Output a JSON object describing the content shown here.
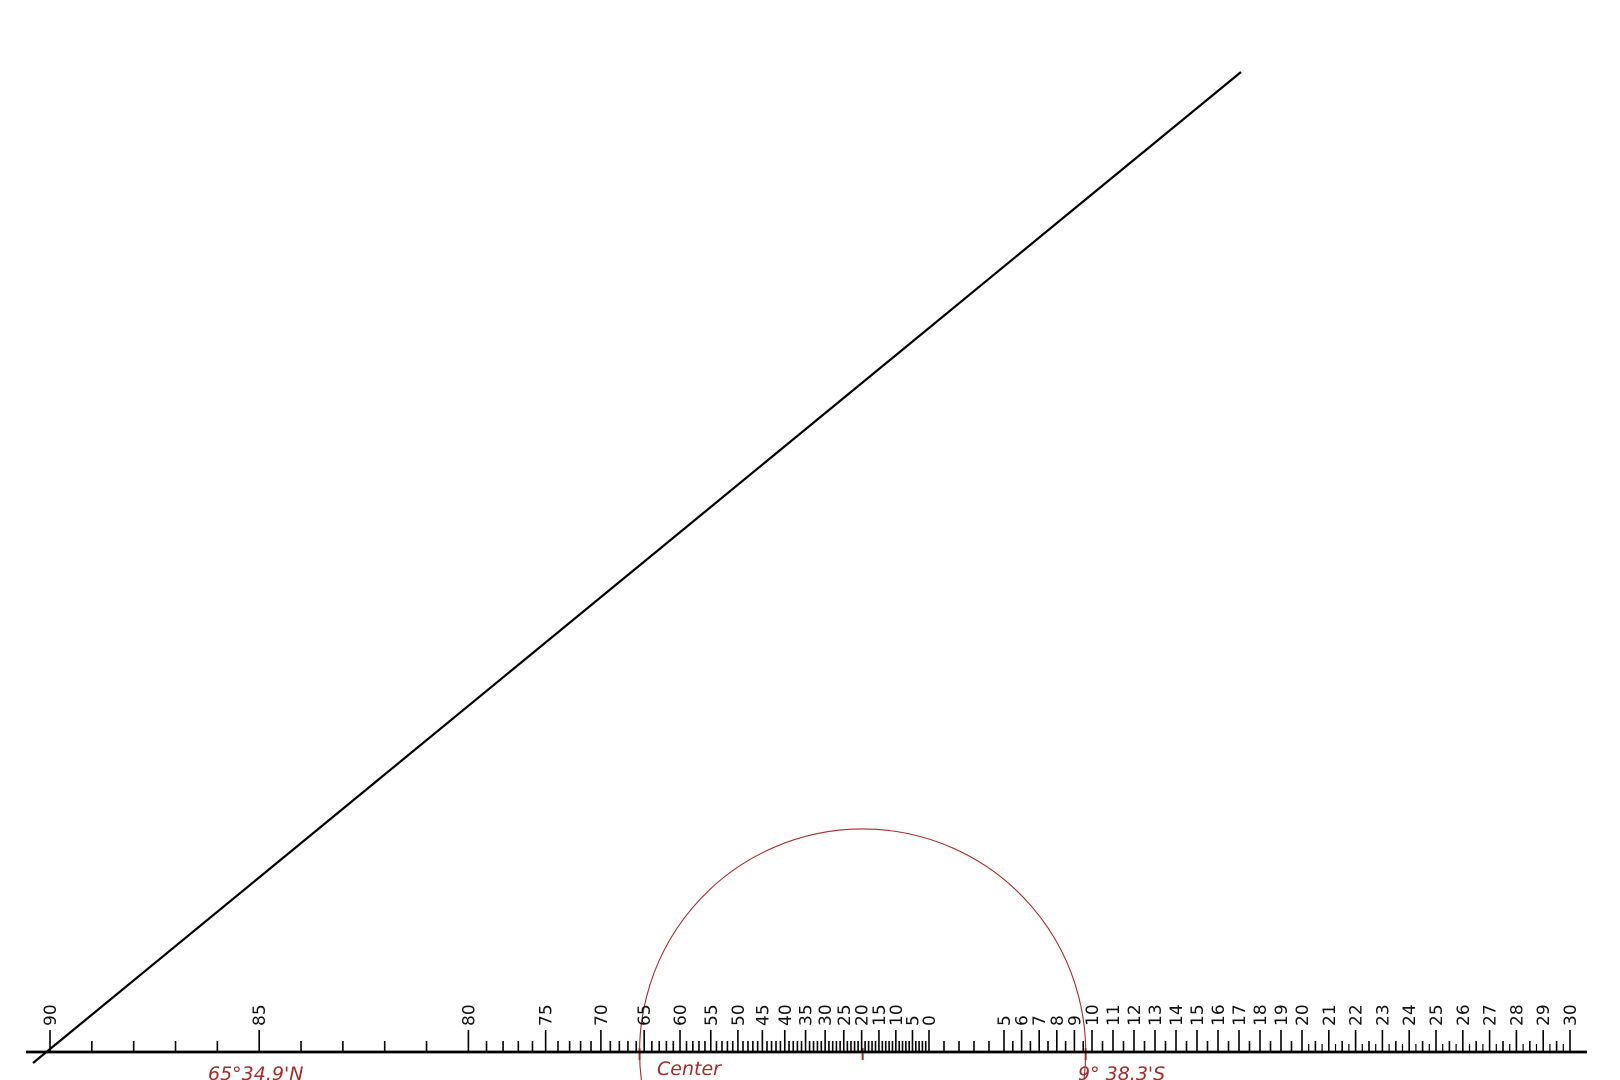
{
  "colors": {
    "ink": "#000000",
    "annotation": "#a52a2a"
  },
  "scale": {
    "left_labels": [
      "90",
      "85",
      "80",
      "75",
      "70",
      "65",
      "60",
      "55",
      "50",
      "45",
      "40",
      "35",
      "30",
      "25",
      "20",
      "15",
      "10",
      "5",
      "0"
    ],
    "right_labels": [
      "5",
      "6",
      "7",
      "8",
      "9",
      "10",
      "11",
      "12",
      "13",
      "14",
      "15",
      "16",
      "17",
      "18",
      "19",
      "20",
      "21",
      "22",
      "23",
      "24",
      "25",
      "26",
      "27",
      "28",
      "29",
      "30"
    ]
  },
  "annotations": {
    "left_mark": "65°34.9'N",
    "center_mark": "Center",
    "right_mark": "9° 38.3'S"
  }
}
